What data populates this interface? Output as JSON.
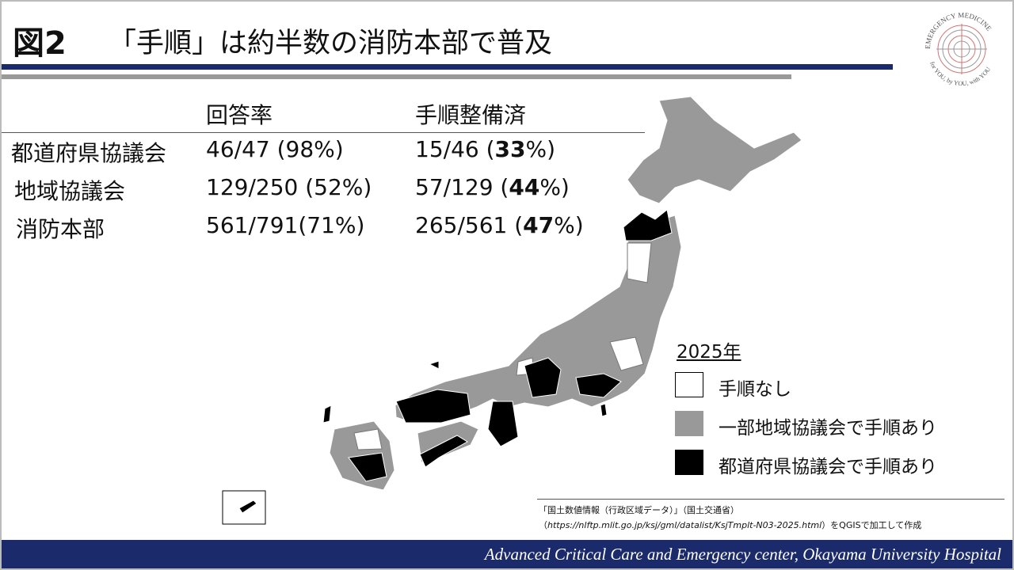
{
  "header": {
    "fig_label": "図2",
    "title": "「手順」は約半数の消防本部で普及"
  },
  "logo": {
    "top_text": "EMERGENCY MEDICINE",
    "bottom_text": "for YOU, by YOU, with YOU"
  },
  "table": {
    "columns": [
      "回答率",
      "手順整備済"
    ],
    "rows": [
      [
        "都道府県協議会",
        "46/47 (98%)",
        {
          "pre": "15/46 (",
          "bold": "33",
          "post": "%)"
        }
      ],
      [
        "地域協議会",
        "129/250 (52%)",
        {
          "pre": "57/129 (",
          "bold": "44",
          "post": "%)"
        }
      ],
      [
        "消防本部",
        "561/791(71%)",
        {
          "pre": "265/561 (",
          "bold": "47",
          "post": "%)"
        }
      ]
    ]
  },
  "legend": {
    "title": "2025年",
    "items": [
      "手順なし",
      "一部地域協議会で手順あり",
      "都道府県協議会で手順あり"
    ]
  },
  "source": {
    "line1": "「国土数値情報（行政区域データ）」（国土交通省）",
    "pre": "（",
    "url": "https://nlftp.mlit.go.jp/ksj/gml/datalist/KsjTmplt-N03-2025.html",
    "post": "）をQGISで加工して作成"
  },
  "footer": "Advanced Critical Care and Emergency center, Okayama University Hospital"
}
